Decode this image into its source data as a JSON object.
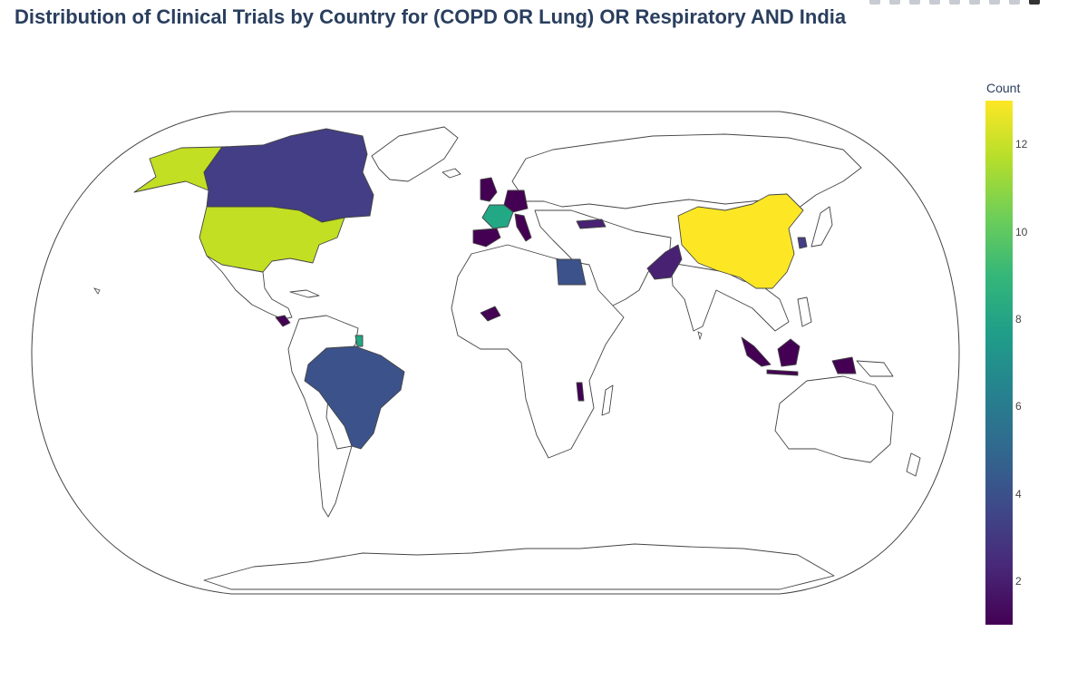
{
  "title": "Distribution of Clinical Trials by Country for  (COPD OR Lung) OR Respiratory AND India",
  "colorbar": {
    "title": "Count",
    "ticks": [
      "12",
      "10",
      "8",
      "6",
      "4",
      "2"
    ],
    "tick_values": [
      12,
      10,
      8,
      6,
      4,
      2
    ],
    "min": 1,
    "max": 13,
    "colorscale": [
      "#440154",
      "#482878",
      "#3e4989",
      "#31688e",
      "#26828e",
      "#1f9e89",
      "#35b779",
      "#6ece58",
      "#b5de2b",
      "#fde725"
    ]
  },
  "map_colors": {
    "land": "#ffffff",
    "border": "#444444",
    "ocean": "#ffffff"
  },
  "countries": [
    {
      "name": "China",
      "count": 13,
      "color": "#fde725"
    },
    {
      "name": "United States",
      "count": 12,
      "color": "#c2df23"
    },
    {
      "name": "France",
      "count": 8,
      "color": "#22a884"
    },
    {
      "name": "French Guiana",
      "count": 8,
      "color": "#22a884"
    },
    {
      "name": "Egypt",
      "count": 4,
      "color": "#3b528b"
    },
    {
      "name": "Brazil",
      "count": 4,
      "color": "#3b528b"
    },
    {
      "name": "Canada",
      "count": 3,
      "color": "#433e85"
    },
    {
      "name": "South Korea",
      "count": 3,
      "color": "#433e85"
    },
    {
      "name": "Pakistan",
      "count": 2,
      "color": "#482173"
    },
    {
      "name": "Turkey",
      "count": 2,
      "color": "#482173"
    },
    {
      "name": "United Kingdom",
      "count": 1,
      "color": "#440154"
    },
    {
      "name": "Germany",
      "count": 1,
      "color": "#440154"
    },
    {
      "name": "Spain",
      "count": 1,
      "color": "#440154"
    },
    {
      "name": "Italy",
      "count": 1,
      "color": "#440154"
    },
    {
      "name": "Indonesia",
      "count": 1,
      "color": "#440154"
    },
    {
      "name": "Burkina Faso",
      "count": 1,
      "color": "#440154"
    },
    {
      "name": "Malawi",
      "count": 1,
      "color": "#440154"
    },
    {
      "name": "Costa Rica",
      "count": 1,
      "color": "#440154"
    }
  ]
}
